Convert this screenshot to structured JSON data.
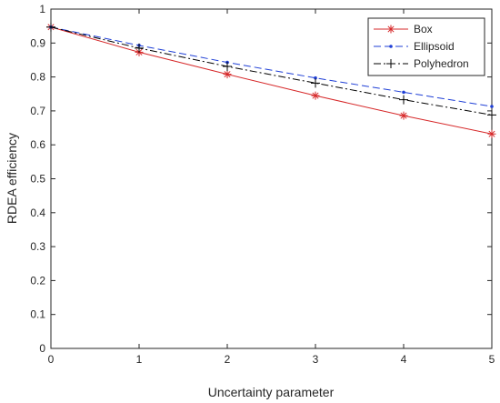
{
  "chart_data": {
    "type": "line",
    "title": "",
    "xlabel": "Uncertainty parameter",
    "ylabel": "RDEA efficiency",
    "xlim": [
      0,
      5
    ],
    "ylim": [
      0,
      1
    ],
    "xticks": [
      0,
      1,
      2,
      3,
      4,
      5
    ],
    "yticks": [
      0,
      0.1,
      0.2,
      0.3,
      0.4,
      0.5,
      0.6,
      0.7,
      0.8,
      0.9,
      1
    ],
    "xtick_labels": [
      "0",
      "1",
      "2",
      "3",
      "4",
      "5"
    ],
    "ytick_labels": [
      "0",
      "0.1",
      "0.2",
      "0.3",
      "0.4",
      "0.5",
      "0.6",
      "0.7",
      "0.8",
      "0.9",
      "1"
    ],
    "grid": false,
    "legend_position": "top-right",
    "x": [
      0,
      1,
      2,
      3,
      4,
      5
    ],
    "series": [
      {
        "name": "Box",
        "values": [
          0.947,
          0.873,
          0.808,
          0.745,
          0.686,
          0.632
        ],
        "color": "#d62728",
        "dash": "solid",
        "marker": "asterisk"
      },
      {
        "name": "Ellipsoid",
        "values": [
          0.947,
          0.893,
          0.843,
          0.797,
          0.755,
          0.713
        ],
        "color": "#1f3fd6",
        "dash": "dashed",
        "marker": "dot"
      },
      {
        "name": "Polyhedron",
        "values": [
          0.947,
          0.885,
          0.831,
          0.782,
          0.733,
          0.688
        ],
        "color": "#000000",
        "dash": "dashdot",
        "marker": "plus"
      }
    ]
  }
}
